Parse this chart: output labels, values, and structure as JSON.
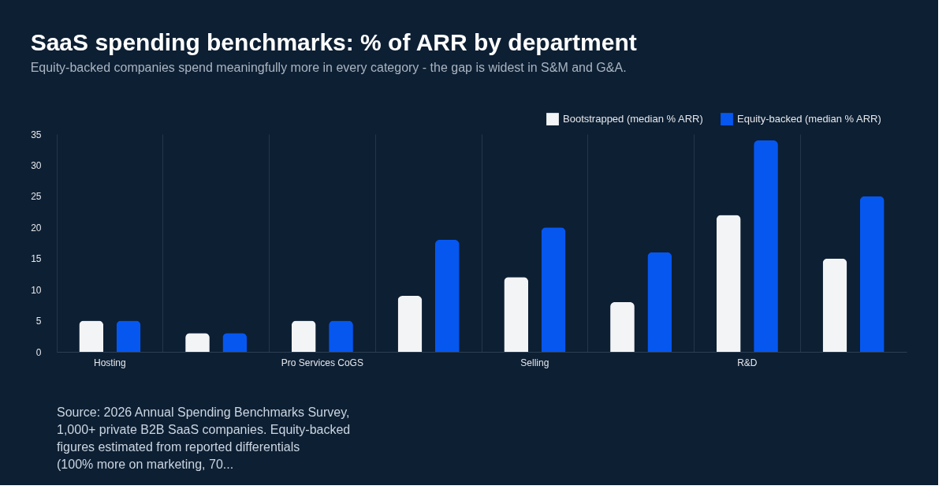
{
  "chart_data": {
    "type": "bar",
    "title": "SaaS spending benchmarks: % of ARR by department",
    "subtitle": "Equity-backed companies spend meaningfully more in every category - the gap is widest in S&M and G&A.",
    "categories": [
      "Hosting",
      null,
      "Pro Services CoGS",
      null,
      "Selling",
      null,
      "R&D",
      null
    ],
    "series": [
      {
        "name": "Bootstrapped (median % ARR)",
        "color": "#f3f4f6",
        "values": [
          5,
          3,
          5,
          9,
          12,
          8,
          22,
          15
        ]
      },
      {
        "name": "Equity-backed (median % ARR)",
        "color": "#0657f0",
        "values": [
          5,
          3,
          5,
          18,
          20,
          16,
          34,
          25
        ]
      }
    ],
    "ylim": [
      0,
      35
    ],
    "yticks": [
      0,
      5,
      10,
      15,
      20,
      25,
      30,
      35
    ],
    "grid": "x",
    "legend": "top right",
    "annotations": [
      "Source: 2026 Annual Spending Benchmarks Survey, 1,000+ private B2B SaaS companies. Equity-backed figures estimated from reported differentials (100% more on marketing, 70..."
    ]
  }
}
